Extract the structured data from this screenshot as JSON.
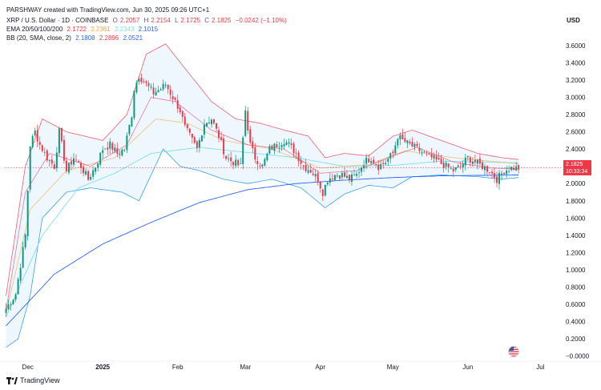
{
  "header": {
    "author_line": "PARSHWAY created with TradingView.com, Jun 30, 2025 09:26 UTC+1",
    "symbol": "XRP / U.S. Dollar · 1D · COINBASE",
    "o_label": "O",
    "o_value": "2.2057",
    "h_label": "H",
    "h_value": "2.2154",
    "l_label": "L",
    "l_value": "2.1725",
    "c_label": "C",
    "c_value": "2.1825",
    "change": "−0.0242 (−1.10%)",
    "ema_label": "EMA 20/50/100/200",
    "ema_values": [
      "2.1722",
      "2.2361",
      "2.2343",
      "2.1015"
    ],
    "bb_label": "BB (20, SMA, close, 2)",
    "bb_values": [
      "2.1808",
      "2.2896",
      "2.0521"
    ]
  },
  "currency": "USD",
  "price_label": {
    "price": "2.1825",
    "countdown": "10:33:34"
  },
  "brand": "TradingView",
  "colors": {
    "up": "#089981",
    "down": "#f23645",
    "ema20": "#e91e63",
    "ema50": "#f2a541",
    "ema100": "#7de0e6",
    "ema200": "#2962ff",
    "bb_band": "#2196f3",
    "bb_upper": "#f23645"
  },
  "chart_data": {
    "type": "candlestick",
    "title": "XRP / U.S. Dollar · 1D · COINBASE",
    "ylim": [
      -0.05,
      3.85
    ],
    "y_ticks": [
      {
        "v": 3.6,
        "label": "3.6000"
      },
      {
        "v": 3.4,
        "label": "3.4000"
      },
      {
        "v": 3.2,
        "label": "3.2000"
      },
      {
        "v": 3.0,
        "label": "3.0000"
      },
      {
        "v": 2.8,
        "label": "2.8000"
      },
      {
        "v": 2.6,
        "label": "2.6000"
      },
      {
        "v": 2.4,
        "label": "2.4000"
      },
      {
        "v": 2.0,
        "label": "2.0000"
      },
      {
        "v": 1.8,
        "label": "1.8000"
      },
      {
        "v": 1.6,
        "label": "1.6000"
      },
      {
        "v": 1.4,
        "label": "1.4000"
      },
      {
        "v": 1.2,
        "label": "1.2000"
      },
      {
        "v": 1.0,
        "label": "1.0000"
      },
      {
        "v": 0.8,
        "label": "0.8000"
      },
      {
        "v": 0.6,
        "label": "0.6000"
      },
      {
        "v": 0.4,
        "label": "0.4000"
      },
      {
        "v": 0.2,
        "label": "0.2000"
      },
      {
        "v": 0.0,
        "label": "−0.0000"
      }
    ],
    "x_ticks": [
      {
        "i": 9,
        "label": "Dec"
      },
      {
        "i": 40,
        "label": "2025"
      },
      {
        "i": 71,
        "label": "Feb"
      },
      {
        "i": 99,
        "label": "Mar"
      },
      {
        "i": 130,
        "label": "Apr"
      },
      {
        "i": 160,
        "label": "May"
      },
      {
        "i": 191,
        "label": "Jun"
      },
      {
        "i": 221,
        "label": "Jul"
      }
    ],
    "candle_count": 213,
    "anchors_close": [
      [
        0,
        0.55
      ],
      [
        4,
        0.72
      ],
      [
        8,
        1.4
      ],
      [
        10,
        2.45
      ],
      [
        12,
        2.6
      ],
      [
        14,
        2.45
      ],
      [
        17,
        2.3
      ],
      [
        20,
        2.2
      ],
      [
        22,
        2.6
      ],
      [
        25,
        2.15
      ],
      [
        28,
        2.3
      ],
      [
        31,
        2.2
      ],
      [
        34,
        2.05
      ],
      [
        37,
        2.2
      ],
      [
        40,
        2.4
      ],
      [
        43,
        2.45
      ],
      [
        46,
        2.35
      ],
      [
        49,
        2.4
      ],
      [
        52,
        2.8
      ],
      [
        53,
        3.1
      ],
      [
        55,
        3.25
      ],
      [
        58,
        3.15
      ],
      [
        61,
        3.05
      ],
      [
        64,
        3.1
      ],
      [
        66,
        3.15
      ],
      [
        68,
        3.05
      ],
      [
        70,
        2.95
      ],
      [
        72,
        2.85
      ],
      [
        74,
        2.65
      ],
      [
        76,
        2.55
      ],
      [
        79,
        2.4
      ],
      [
        82,
        2.7
      ],
      [
        85,
        2.75
      ],
      [
        88,
        2.55
      ],
      [
        91,
        2.3
      ],
      [
        94,
        2.25
      ],
      [
        97,
        2.2
      ],
      [
        99,
        2.85
      ],
      [
        101,
        2.45
      ],
      [
        103,
        2.3
      ],
      [
        106,
        2.2
      ],
      [
        109,
        2.4
      ],
      [
        112,
        2.45
      ],
      [
        115,
        2.5
      ],
      [
        117,
        2.45
      ],
      [
        120,
        2.35
      ],
      [
        123,
        2.2
      ],
      [
        126,
        2.15
      ],
      [
        129,
        2.05
      ],
      [
        131,
        1.9
      ],
      [
        133,
        2.05
      ],
      [
        136,
        2.1
      ],
      [
        139,
        2.1
      ],
      [
        142,
        2.05
      ],
      [
        145,
        2.1
      ],
      [
        148,
        2.25
      ],
      [
        151,
        2.3
      ],
      [
        154,
        2.2
      ],
      [
        157,
        2.25
      ],
      [
        160,
        2.35
      ],
      [
        162,
        2.55
      ],
      [
        164,
        2.5
      ],
      [
        167,
        2.45
      ],
      [
        170,
        2.4
      ],
      [
        173,
        2.35
      ],
      [
        176,
        2.3
      ],
      [
        179,
        2.25
      ],
      [
        182,
        2.2
      ],
      [
        185,
        2.15
      ],
      [
        188,
        2.2
      ],
      [
        191,
        2.3
      ],
      [
        194,
        2.25
      ],
      [
        197,
        2.2
      ],
      [
        200,
        2.15
      ],
      [
        203,
        2.05
      ],
      [
        206,
        2.15
      ],
      [
        209,
        2.18
      ],
      [
        212,
        2.18
      ]
    ],
    "ema200_anchors": [
      [
        0,
        0.35
      ],
      [
        20,
        0.95
      ],
      [
        40,
        1.3
      ],
      [
        60,
        1.55
      ],
      [
        80,
        1.78
      ],
      [
        100,
        1.93
      ],
      [
        120,
        2.0
      ],
      [
        140,
        2.04
      ],
      [
        160,
        2.07
      ],
      [
        180,
        2.09
      ],
      [
        212,
        2.1
      ]
    ],
    "ema100_anchors": [
      [
        0,
        0.45
      ],
      [
        15,
        1.4
      ],
      [
        30,
        1.95
      ],
      [
        45,
        2.12
      ],
      [
        60,
        2.35
      ],
      [
        80,
        2.42
      ],
      [
        100,
        2.36
      ],
      [
        120,
        2.3
      ],
      [
        140,
        2.2
      ],
      [
        160,
        2.21
      ],
      [
        180,
        2.26
      ],
      [
        212,
        2.24
      ]
    ],
    "ema50_anchors": [
      [
        0,
        0.5
      ],
      [
        10,
        1.7
      ],
      [
        25,
        2.15
      ],
      [
        45,
        2.3
      ],
      [
        62,
        2.75
      ],
      [
        75,
        2.7
      ],
      [
        90,
        2.5
      ],
      [
        110,
        2.4
      ],
      [
        130,
        2.18
      ],
      [
        150,
        2.22
      ],
      [
        165,
        2.38
      ],
      [
        185,
        2.3
      ],
      [
        212,
        2.23
      ]
    ],
    "ema20_anchors": [
      [
        0,
        0.52
      ],
      [
        8,
        1.9
      ],
      [
        18,
        2.35
      ],
      [
        35,
        2.2
      ],
      [
        50,
        2.45
      ],
      [
        60,
        3.0
      ],
      [
        70,
        2.95
      ],
      [
        85,
        2.62
      ],
      [
        100,
        2.45
      ],
      [
        115,
        2.4
      ],
      [
        130,
        2.12
      ],
      [
        145,
        2.15
      ],
      [
        160,
        2.32
      ],
      [
        170,
        2.42
      ],
      [
        185,
        2.25
      ],
      [
        200,
        2.18
      ],
      [
        212,
        2.17
      ]
    ],
    "bb_upper_anchors": [
      [
        0,
        0.7
      ],
      [
        8,
        2.2
      ],
      [
        15,
        2.75
      ],
      [
        25,
        2.6
      ],
      [
        40,
        2.5
      ],
      [
        50,
        2.8
      ],
      [
        58,
        3.5
      ],
      [
        66,
        3.62
      ],
      [
        75,
        3.3
      ],
      [
        85,
        2.95
      ],
      [
        95,
        2.75
      ],
      [
        105,
        2.7
      ],
      [
        115,
        2.62
      ],
      [
        125,
        2.55
      ],
      [
        132,
        2.3
      ],
      [
        140,
        2.35
      ],
      [
        150,
        2.32
      ],
      [
        160,
        2.55
      ],
      [
        168,
        2.62
      ],
      [
        180,
        2.5
      ],
      [
        195,
        2.35
      ],
      [
        205,
        2.3
      ],
      [
        212,
        2.28
      ]
    ],
    "bb_lower_anchors": [
      [
        0,
        0.1
      ],
      [
        5,
        0.2
      ],
      [
        10,
        0.7
      ],
      [
        15,
        1.6
      ],
      [
        25,
        1.9
      ],
      [
        35,
        1.95
      ],
      [
        48,
        1.9
      ],
      [
        55,
        1.8
      ],
      [
        65,
        2.4
      ],
      [
        72,
        2.2
      ],
      [
        80,
        2.15
      ],
      [
        90,
        2.05
      ],
      [
        100,
        2.0
      ],
      [
        110,
        2.05
      ],
      [
        122,
        1.95
      ],
      [
        132,
        1.72
      ],
      [
        140,
        1.88
      ],
      [
        150,
        1.98
      ],
      [
        160,
        1.95
      ],
      [
        168,
        2.08
      ],
      [
        180,
        2.1
      ],
      [
        195,
        2.08
      ],
      [
        205,
        2.05
      ],
      [
        212,
        2.07
      ]
    ]
  }
}
